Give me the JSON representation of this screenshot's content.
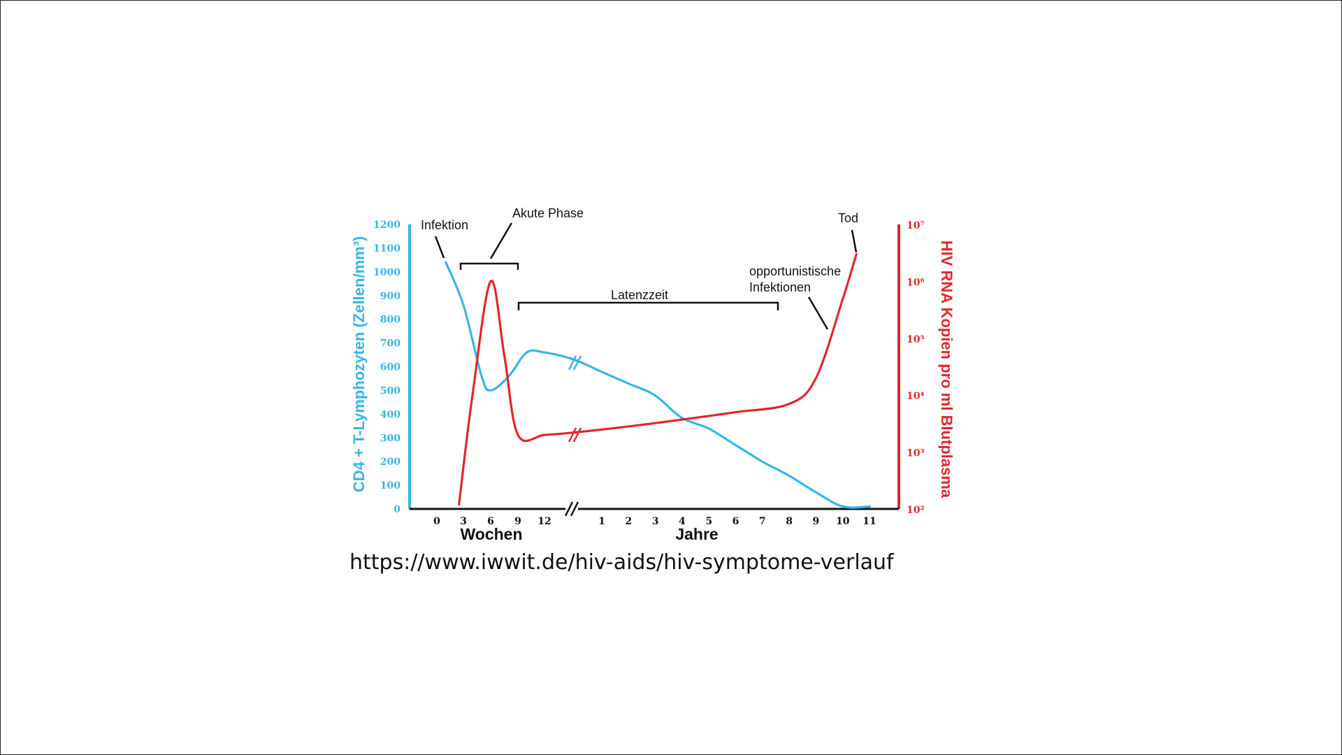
{
  "source_url": "https://www.iwwit.de/hiv-aids/hiv-symptome-verlauf",
  "colors": {
    "cd4": "#3ab4e6",
    "rna": "#e0272b",
    "axis": "#111111"
  },
  "chart_data": {
    "type": "line",
    "x_axis": {
      "groups": [
        {
          "label": "Wochen",
          "ticks": [
            "0",
            "3",
            "6",
            "9",
            "12"
          ]
        },
        {
          "label": "Jahre",
          "ticks": [
            "1",
            "2",
            "3",
            "4",
            "5",
            "6",
            "7",
            "8",
            "9",
            "10",
            "11"
          ]
        }
      ],
      "break": true
    },
    "y_left": {
      "label": "CD4 + T-Lymphozyten (Zellen/mm³)",
      "ticks": [
        0,
        100,
        200,
        300,
        400,
        500,
        600,
        700,
        800,
        900,
        1000,
        1100,
        1200
      ],
      "range": [
        0,
        1200
      ]
    },
    "y_right": {
      "label": "HIV RNA Kopien pro ml Blutplasma",
      "scale": "log",
      "ticks": [
        "10²",
        "10³",
        "10⁴",
        "10⁵",
        "10⁶",
        "10⁷"
      ],
      "range": [
        100,
        10000000
      ]
    },
    "series": [
      {
        "axis": "left",
        "points": [
          {
            "x": "Wochen 1",
            "y": 1040
          },
          {
            "x": "Wochen 3",
            "y": 860
          },
          {
            "x": "Wochen 5",
            "y": 560
          },
          {
            "x": "Wochen 6",
            "y": 500
          },
          {
            "x": "Wochen 8",
            "y": 560
          },
          {
            "x": "Wochen 10",
            "y": 660
          },
          {
            "x": "Wochen 12",
            "y": 660
          },
          {
            "x": "Jahre 0",
            "y": 630
          },
          {
            "x": "Jahre 1",
            "y": 580
          },
          {
            "x": "Jahre 2",
            "y": 530
          },
          {
            "x": "Jahre 3",
            "y": 480
          },
          {
            "x": "Jahre 4",
            "y": 385
          },
          {
            "x": "Jahre 5",
            "y": 340
          },
          {
            "x": "Jahre 6",
            "y": 270
          },
          {
            "x": "Jahre 7",
            "y": 200
          },
          {
            "x": "Jahre 8",
            "y": 140
          },
          {
            "x": "Jahre 9",
            "y": 70
          },
          {
            "x": "Jahre 10",
            "y": 10
          },
          {
            "x": "Jahre 11",
            "y": 10
          }
        ]
      },
      {
        "axis": "right",
        "points": [
          {
            "x": "Wochen 2.5",
            "y": 120
          },
          {
            "x": "Wochen 4",
            "y": 10000
          },
          {
            "x": "Wochen 6",
            "y": 1000000
          },
          {
            "x": "Wochen 7.5",
            "y": 50000
          },
          {
            "x": "Wochen 9",
            "y": 2000
          },
          {
            "x": "Wochen 12",
            "y": 2000
          },
          {
            "x": "Jahre 0",
            "y": 2200
          },
          {
            "x": "Jahre 2",
            "y": 2800
          },
          {
            "x": "Jahre 4",
            "y": 3700
          },
          {
            "x": "Jahre 6",
            "y": 5000
          },
          {
            "x": "Jahre 8",
            "y": 7000
          },
          {
            "x": "Jahre 9",
            "y": 20000
          },
          {
            "x": "Jahre 10",
            "y": 500000
          },
          {
            "x": "Jahre 10.5",
            "y": 3000000
          }
        ]
      }
    ],
    "annotations": [
      {
        "text": "Infektion"
      },
      {
        "text": "Akute Phase"
      },
      {
        "text": "Latenzzeit"
      },
      {
        "text": "opportunistische Infektionen"
      },
      {
        "text": "Tod"
      }
    ]
  }
}
